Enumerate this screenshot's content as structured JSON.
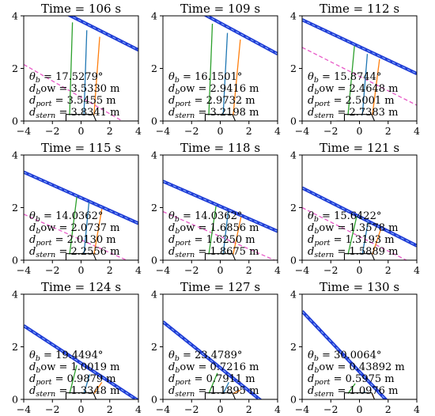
{
  "chart_data": {
    "type": "line",
    "layout": "3x3 grid of panels",
    "xlim": [
      -4,
      4
    ],
    "ylim": [
      0,
      4
    ],
    "xticks": [
      -4,
      -2,
      0,
      2,
      4
    ],
    "yticks": [
      0,
      2,
      4
    ],
    "colors": {
      "wave_band": "#1f3cd6",
      "wave_center": "#9ec7ff",
      "prediction": "#e85ac8",
      "bow_line": "#2ca02c",
      "port_line": "#1f77b4",
      "stern_line": "#ff7f0e",
      "baseline": "#7f7f7f",
      "hull": "#000000"
    },
    "panels": [
      {
        "title": "Time = 106 s",
        "theta_label": "θb = 17.5279°",
        "bow_label": "dbow = 3.5330 m",
        "port_label": "dport = 3.5455 m",
        "stern_label": "dstern = 3.8341 m",
        "wave": {
          "x": [
            -4,
            4
          ],
          "y": [
            4.9,
            2.7
          ]
        },
        "predicted": {
          "x": [
            -4,
            4
          ],
          "y": [
            2.15,
            -0.35
          ]
        },
        "bow_end": [
          -0.6,
          3.75
        ],
        "port_end": [
          0.4,
          3.45
        ],
        "stern_end": [
          1.3,
          3.2
        ]
      },
      {
        "title": "Time = 109 s",
        "theta_label": "θb = 16.1501°",
        "bow_label": "dbow = 2.9416 m",
        "port_label": "dport = 2.9732 m",
        "stern_label": "dstern = 3.2198 m",
        "wave": {
          "x": [
            -4,
            4
          ],
          "y": [
            4.9,
            2.55
          ]
        },
        "predicted": null,
        "bow_end": [
          -0.55,
          3.7
        ],
        "port_end": [
          0.5,
          3.35
        ],
        "stern_end": [
          1.4,
          3.1
        ]
      },
      {
        "title": "Time = 112 s",
        "theta_label": "θb = 15.8744°",
        "bow_label": "dbow =  2.4648 m",
        "port_label": "dport = 2.5001 m",
        "stern_label": "dstern = 2.7383 m",
        "wave": {
          "x": [
            -4,
            4
          ],
          "y": [
            3.85,
            1.8
          ]
        },
        "predicted": {
          "x": [
            -4,
            4
          ],
          "y": [
            2.8,
            0.6
          ]
        },
        "bow_end": [
          -0.35,
          2.85
        ],
        "port_end": [
          0.55,
          2.55
        ],
        "stern_end": [
          1.4,
          2.35
        ]
      },
      {
        "title": "Time = 115 s",
        "theta_label": "θb = 14.0362°",
        "bow_label": "dbow = 2.0737 m",
        "port_label": "dport = 2.0130 m",
        "stern_label": "dstern = 2.2556 m",
        "wave": {
          "x": [
            -4,
            4
          ],
          "y": [
            3.35,
            1.4
          ]
        },
        "predicted": {
          "x": [
            -4,
            4
          ],
          "y": [
            1.75,
            -0.2
          ]
        },
        "bow_end": [
          -0.3,
          2.4
        ],
        "port_end": [
          0.55,
          2.2
        ],
        "stern_end": [
          1.45,
          1.95
        ]
      },
      {
        "title": "Time = 118 s",
        "theta_label": "θb = 14.0362°",
        "bow_label": "dbow = 1.6856 m",
        "port_label": "dport = 1.6250 m",
        "stern_label": "dstern = 1.8675 m",
        "wave": {
          "x": [
            -4,
            4
          ],
          "y": [
            3.0,
            1.1
          ]
        },
        "predicted": {
          "x": [
            -4,
            4
          ],
          "y": [
            1.85,
            -0.05
          ]
        },
        "bow_end": [
          -0.3,
          2.05
        ],
        "port_end": [
          0.55,
          1.85
        ],
        "stern_end": [
          1.45,
          1.65
        ]
      },
      {
        "title": "Time = 121 s",
        "theta_label": "θb = 15.6422°",
        "bow_label": "dbow =  1.3578 m",
        "port_label": "dport = 1.3193 m",
        "stern_label": "dstern = 1.5889 m",
        "wave": {
          "x": [
            -4,
            4
          ],
          "y": [
            2.75,
            0.55
          ]
        },
        "predicted": {
          "x": [
            -4,
            4
          ],
          "y": [
            2.0,
            -0.2
          ]
        },
        "bow_end": [
          -0.2,
          1.65
        ],
        "port_end": [
          0.6,
          1.45
        ],
        "stern_end": [
          1.5,
          1.2
        ]
      },
      {
        "title": "Time = 124 s",
        "theta_label": "θb = 19.4494°",
        "bow_label": "dbow = 1.0019 m",
        "port_label": "dport = 0.9879 m",
        "stern_label": "dstern = 1.3348 m",
        "wave": {
          "x": [
            -4,
            4
          ],
          "y": [
            2.8,
            -0.05
          ]
        },
        "predicted": null,
        "bow_end": [
          -0.3,
          1.3
        ],
        "port_end": [
          0.6,
          0.95
        ],
        "stern_end": [
          1.45,
          0.65
        ]
      },
      {
        "title": "Time = 127 s",
        "theta_label": "θb = 23.4789°",
        "bow_label": "dbow = 0.7216 m",
        "port_label": "dport = 0.7911 m",
        "stern_label": "dstern = 1.1895 m",
        "wave": {
          "x": [
            -4,
            4
          ],
          "y": [
            2.95,
            -0.55
          ]
        },
        "predicted": null,
        "bow_end": [
          -0.2,
          1.0
        ],
        "port_end": [
          0.6,
          0.65
        ],
        "stern_end": [
          1.4,
          0.35
        ]
      },
      {
        "title": "Time = 130 s",
        "theta_label": "θb = 30.0064°",
        "bow_label": "dbow =  0.43892 m",
        "port_label": "dport = 0.5975 m",
        "stern_label": "dstern = 1.0976 m",
        "wave": {
          "x": [
            -4,
            4
          ],
          "y": [
            3.35,
            -1.25
          ]
        },
        "predicted": null,
        "bow_end": [
          -0.3,
          0.6
        ],
        "port_end": [
          0.4,
          0.3
        ],
        "stern_end": [
          1.0,
          0.05
        ]
      }
    ]
  }
}
